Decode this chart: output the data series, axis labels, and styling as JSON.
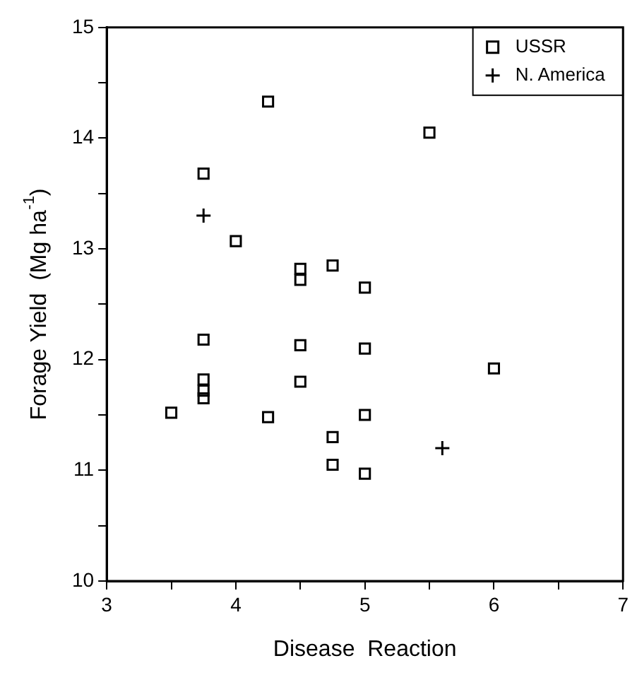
{
  "chart_data": {
    "type": "scatter",
    "xlabel": "Disease  Reaction",
    "ylabel": "Forage Yield  (Mg ha$^{-1}$)",
    "xlim": [
      3,
      7
    ],
    "xticks": [
      3,
      {
        "value": 3.5,
        "label": null
      },
      4,
      {
        "value": 4.5,
        "label": null
      },
      5,
      {
        "value": 5.5,
        "label": null
      },
      6,
      {
        "value": 6.5,
        "label": null
      },
      7
    ],
    "ylim": [
      10,
      15
    ],
    "yticks": [
      10,
      {
        "value": 10.5,
        "label": null
      },
      11,
      {
        "value": 11.5,
        "label": null
      },
      12,
      {
        "value": 12.5,
        "label": null
      },
      13,
      {
        "value": 13.5,
        "label": null
      },
      14,
      {
        "value": 14.5,
        "label": null
      },
      15
    ],
    "grid": false,
    "legend": "top right",
    "series": [
      {
        "name": "USSR",
        "color": "#000000",
        "marker": "square",
        "x": [
          4.25,
          5.5,
          3.75,
          4.0,
          4.5,
          4.5,
          4.75,
          5.0,
          3.75,
          4.5,
          5.0,
          6.0,
          3.75,
          3.75,
          3.75,
          4.5,
          3.5,
          4.25,
          5.0,
          4.75,
          4.75,
          5.0
        ],
        "values": [
          14.33,
          14.05,
          13.68,
          13.07,
          12.82,
          12.72,
          12.85,
          12.65,
          12.18,
          12.13,
          12.1,
          11.92,
          11.82,
          11.72,
          11.65,
          11.8,
          11.52,
          11.48,
          11.5,
          11.3,
          11.05,
          10.97
        ]
      },
      {
        "name": "N. America",
        "color": "#000000",
        "marker": "cross",
        "x": [
          3.75,
          5.6
        ],
        "values": [
          13.3,
          11.2
        ]
      }
    ]
  }
}
